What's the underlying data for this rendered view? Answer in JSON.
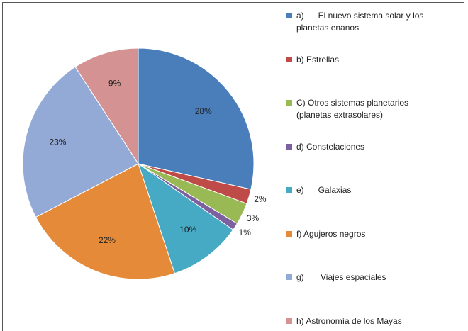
{
  "chart_data": {
    "type": "pie",
    "categories": [
      "a)      El nuevo sistema solar y los planetas enanos",
      "b) Estrellas",
      "C) Otros sistemas planetarios (planetas extrasolares)",
      "d) Constelaciones",
      "e)      Galaxias",
      "f) Agujeros negros",
      "g)       Viajes espaciales",
      "h) Astronomía de los Mayas"
    ],
    "values": [
      28,
      2,
      3,
      1,
      10,
      22,
      23,
      9
    ],
    "value_labels": [
      "28%",
      "2%",
      "3%",
      "1%",
      "10%",
      "22%",
      "23%",
      "9%"
    ],
    "colors": [
      "#4a7ebb",
      "#be4b48",
      "#98b954",
      "#7d60a0",
      "#46aac5",
      "#e48a38",
      "#94aad6",
      "#d49392"
    ],
    "legend": "right"
  }
}
